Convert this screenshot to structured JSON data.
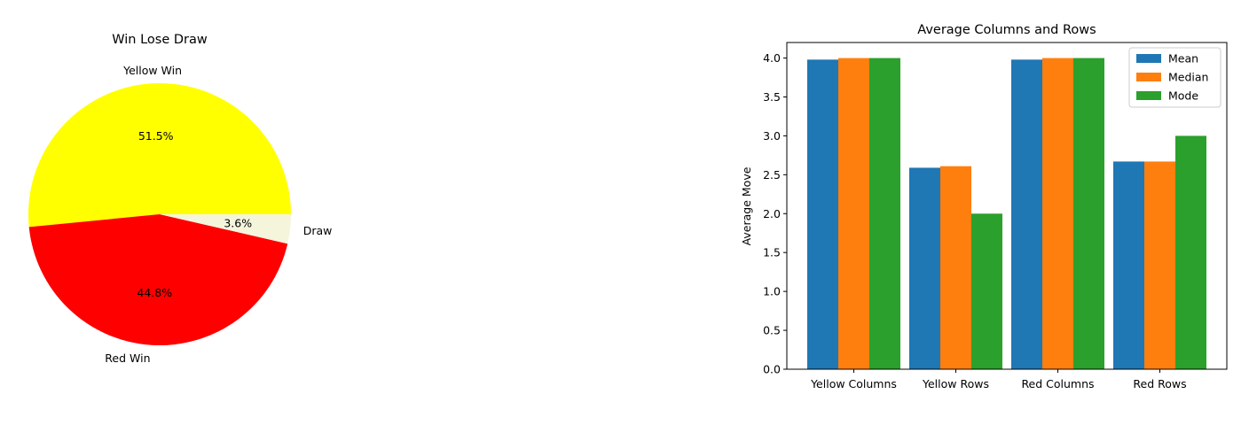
{
  "chart_data": [
    {
      "type": "pie",
      "title": "Win Lose Draw",
      "slices": [
        {
          "label": "Yellow Win",
          "value": 51.5,
          "pct_label": "51.5%",
          "color": "#ffff00"
        },
        {
          "label": "Red Win",
          "value": 44.8,
          "pct_label": "44.8%",
          "color": "#ff0000"
        },
        {
          "label": "Draw",
          "value": 3.6,
          "pct_label": "3.6%",
          "color": "#f5f5dc"
        }
      ]
    },
    {
      "type": "bar",
      "title": "Average Columns and Rows",
      "xlabel": "",
      "ylabel": "Average Move",
      "categories": [
        "Yellow Columns",
        "Yellow Rows",
        "Red Columns",
        "Red Rows"
      ],
      "series": [
        {
          "name": "Mean",
          "color": "#1f77b4",
          "values": [
            3.98,
            2.59,
            3.98,
            2.67
          ]
        },
        {
          "name": "Median",
          "color": "#ff7f0e",
          "values": [
            4.0,
            2.61,
            4.0,
            2.67
          ]
        },
        {
          "name": "Mode",
          "color": "#2ca02c",
          "values": [
            4.0,
            2.0,
            4.0,
            3.0
          ]
        }
      ],
      "ylim": [
        0,
        4.2
      ],
      "yticks": [
        "0.0",
        "0.5",
        "1.0",
        "1.5",
        "2.0",
        "2.5",
        "3.0",
        "3.5",
        "4.0"
      ],
      "legend_position": "top-right",
      "grid": false
    }
  ]
}
